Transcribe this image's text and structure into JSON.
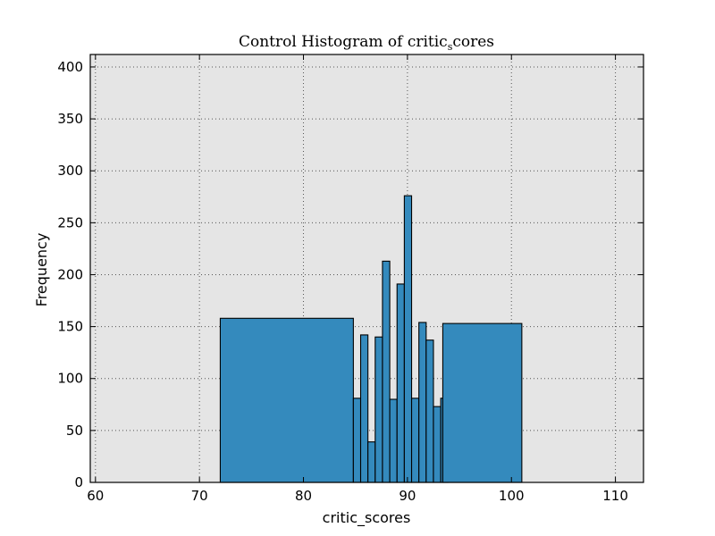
{
  "chart_data": {
    "type": "bar",
    "title_main": "Control Histogram of critic",
    "title_sub": "s",
    "title_tail": "cores",
    "xlabel": "critic_scores",
    "ylabel": "Frequency",
    "xlim": [
      59.5,
      112.7
    ],
    "ylim": [
      0,
      412
    ],
    "xticks": [
      60,
      70,
      80,
      90,
      100,
      110
    ],
    "yticks": [
      0,
      50,
      100,
      150,
      200,
      250,
      300,
      350,
      400
    ],
    "grid": true,
    "bars": [
      {
        "x0": 72.0,
        "x1": 84.8,
        "value": 158
      },
      {
        "x0": 84.8,
        "x1": 85.5,
        "value": 81
      },
      {
        "x0": 85.5,
        "x1": 86.2,
        "value": 142
      },
      {
        "x0": 86.2,
        "x1": 86.9,
        "value": 39
      },
      {
        "x0": 86.9,
        "x1": 87.6,
        "value": 140
      },
      {
        "x0": 87.6,
        "x1": 88.3,
        "value": 213
      },
      {
        "x0": 88.3,
        "x1": 89.0,
        "value": 80
      },
      {
        "x0": 89.0,
        "x1": 89.7,
        "value": 191
      },
      {
        "x0": 89.7,
        "x1": 90.4,
        "value": 276
      },
      {
        "x0": 90.4,
        "x1": 91.1,
        "value": 81
      },
      {
        "x0": 91.1,
        "x1": 91.8,
        "value": 154
      },
      {
        "x0": 91.8,
        "x1": 92.5,
        "value": 137
      },
      {
        "x0": 92.5,
        "x1": 93.2,
        "value": 73
      },
      {
        "x0": 93.2,
        "x1": 93.9,
        "value": 81
      },
      {
        "x0": 93.4,
        "x1": 101.0,
        "value": 153
      }
    ],
    "colors": {
      "bar_fill": "#348ABD",
      "plot_bg": "#E5E5E5",
      "grid": "#555555"
    }
  }
}
